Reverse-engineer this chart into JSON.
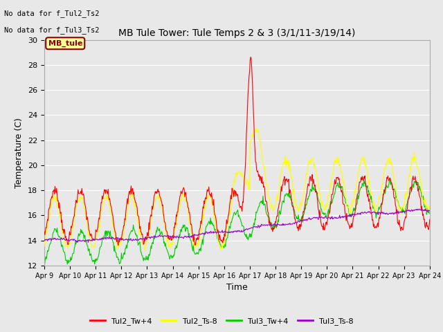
{
  "title": "MB Tule Tower: Tule Temps 2 & 3 (3/1/11-3/19/14)",
  "xlabel": "Time",
  "ylabel": "Temperature (C)",
  "ylim": [
    12,
    30
  ],
  "bg_color": "#e8e8e8",
  "annotations": [
    "No data for f_Tul2_Ts2",
    "No data for f_Tul3_Ts2"
  ],
  "legend_box_label": "MB_tule",
  "legend_box_color": "#ffff99",
  "legend_box_border": "#8b0000",
  "xtick_labels": [
    "Apr 9",
    "Apr 10",
    "Apr 11",
    "Apr 12",
    "Apr 13",
    "Apr 14",
    "Apr 15",
    "Apr 16",
    "Apr 17",
    "Apr 18",
    "Apr 19",
    "Apr 20",
    "Apr 21",
    "Apr 22",
    "Apr 23",
    "Apr 24"
  ],
  "series_colors": {
    "Tul2_Tw+4": "#ff0000",
    "Tul2_Ts-8": "#ffff00",
    "Tul3_Tw+4": "#00cc00",
    "Tul3_Ts-8": "#9900cc"
  }
}
